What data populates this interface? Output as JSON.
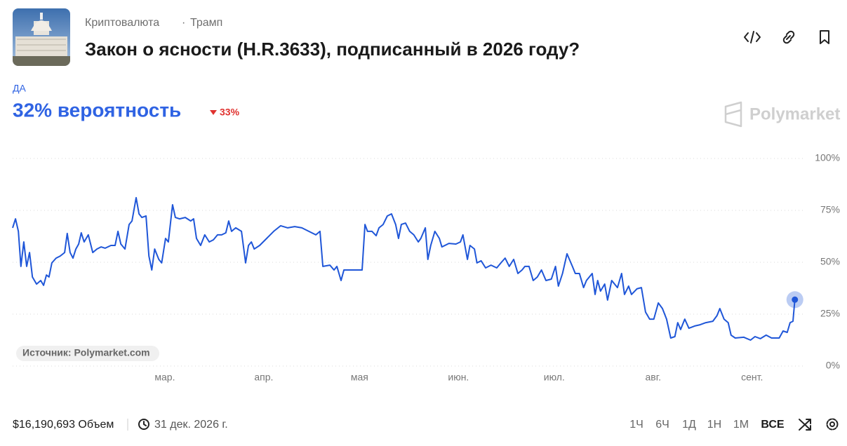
{
  "header": {
    "breadcrumb": [
      "Криптовалюта",
      "Трамп"
    ],
    "separator": "·",
    "title": "Закон о ясности (H.R.3633), подписанный в 2026 году?"
  },
  "outcome": {
    "label": "ДА",
    "probability": "32% вероятность",
    "change": "33%"
  },
  "brand": "Polymarket",
  "source": "Источник: Polymarket.com",
  "footer": {
    "volume": "$16,190,693 Объем",
    "end_date": "31 дек. 2026 г.",
    "ranges": [
      "1Ч",
      "6Ч",
      "1Д",
      "1Н",
      "1М",
      "ВСЕ"
    ]
  },
  "chart_data": {
    "type": "line",
    "x": [
      12.3,
      13.2,
      14.1,
      14.9,
      15.8,
      16.7,
      17.6,
      18.5,
      19.8,
      21.1,
      22.0,
      22.9,
      23.7,
      24.6,
      25.9,
      27.2,
      28.6,
      29.4,
      30.3,
      31.2,
      32.1,
      33.0,
      33.8,
      34.7,
      36.0,
      37.4,
      38.7,
      40.0,
      41.3,
      43.1,
      44.4,
      45.3,
      46.2,
      47.5,
      48.8,
      49.7,
      51.0,
      51.9,
      52.8,
      54.1,
      55.0,
      55.9,
      56.8,
      58.1,
      59.0,
      60.2,
      61.1,
      62.4,
      63.3,
      64.6,
      66.4,
      68.1,
      69.0,
      69.9,
      71.2,
      72.5,
      73.9,
      75.2,
      76.5,
      77.8,
      79.1,
      80.0,
      80.9,
      82.2,
      84.0,
      85.3,
      86.2,
      87.1,
      88.0,
      89.7,
      91.9,
      94.1,
      96.3,
      98.5,
      100.7,
      102.9,
      105.1,
      107.3,
      108.6,
      109.5,
      111.7,
      113.0,
      113.9,
      115.2,
      116.1,
      118.3,
      121.8,
      122.7,
      123.5,
      124.9,
      126.2,
      127.1,
      128.4,
      129.7,
      131.0,
      132.3,
      133.2,
      134.1,
      135.4,
      136.7,
      138.0,
      139.4,
      140.2,
      141.6,
      142.4,
      143.3,
      144.6,
      146.0,
      146.8,
      149.0,
      151.2,
      152.6,
      153.4,
      154.8,
      155.6,
      157.0,
      157.8,
      159.1,
      160.5,
      162.2,
      164.0,
      165.3,
      166.6,
      167.9,
      169.3,
      170.6,
      171.9,
      172.8,
      174.1,
      175.4,
      176.7,
      178.0,
      179.4,
      181.1,
      182.4,
      183.3,
      184.6,
      186.0,
      187.7,
      188.6,
      189.9,
      191.2,
      192.1,
      193.9,
      194.8,
      195.6,
      196.5,
      197.8,
      198.7,
      200.0,
      201.8,
      203.1,
      204.0,
      205.3,
      206.2,
      207.9,
      209.3,
      210.6,
      211.9,
      213.2,
      214.6,
      215.9,
      217.2,
      218.5,
      219.8,
      220.7,
      221.6,
      222.9,
      224.2,
      226.0,
      227.7,
      229.5,
      231.7,
      233.0,
      233.9,
      235.2,
      236.5,
      237.4,
      238.7,
      241.4,
      243.5,
      244.9,
      246.6,
      248.4,
      250.1,
      252.5,
      253.7,
      255.0,
      255.9,
      256.8,
      257.4
    ],
    "series": [
      {
        "color": "#1f56d8",
        "values": [
          66.6,
          70.9,
          64.9,
          48.0,
          59.8,
          48.0,
          54.7,
          42.9,
          39.5,
          41.2,
          38.9,
          43.9,
          42.9,
          49.7,
          52.0,
          53.0,
          54.7,
          63.9,
          54.7,
          52.0,
          56.4,
          58.8,
          64.2,
          59.8,
          63.2,
          54.7,
          56.4,
          57.4,
          56.8,
          58.1,
          58.1,
          64.9,
          58.8,
          56.4,
          68.2,
          69.9,
          81.1,
          73.3,
          71.6,
          72.3,
          53.0,
          46.3,
          56.4,
          51.4,
          49.7,
          61.5,
          59.8,
          77.7,
          71.6,
          70.9,
          71.6,
          69.9,
          70.9,
          61.5,
          58.1,
          63.2,
          59.8,
          60.8,
          63.2,
          63.2,
          64.2,
          69.9,
          64.9,
          66.6,
          64.9,
          49.7,
          58.1,
          59.8,
          56.4,
          58.1,
          61.5,
          64.9,
          67.6,
          66.6,
          67.2,
          66.6,
          64.9,
          63.2,
          64.9,
          48.0,
          48.6,
          46.3,
          48.0,
          41.2,
          46.3,
          46.3,
          46.3,
          68.2,
          64.9,
          64.9,
          62.8,
          66.6,
          68.2,
          72.3,
          73.3,
          68.2,
          61.5,
          68.2,
          68.9,
          64.9,
          63.2,
          59.8,
          61.5,
          66.6,
          51.4,
          58.1,
          64.9,
          61.5,
          57.4,
          59.1,
          58.8,
          59.8,
          63.2,
          51.4,
          58.1,
          56.4,
          49.7,
          50.7,
          47.3,
          48.6,
          47.3,
          49.7,
          52.0,
          48.0,
          51.4,
          44.6,
          46.3,
          48.0,
          48.0,
          41.2,
          42.9,
          46.3,
          41.2,
          41.9,
          48.0,
          38.5,
          44.6,
          54.1,
          48.0,
          44.6,
          44.6,
          37.8,
          41.2,
          44.6,
          34.5,
          41.2,
          36.1,
          39.5,
          31.8,
          41.2,
          37.8,
          44.6,
          34.5,
          38.5,
          34.5,
          37.2,
          37.8,
          26.0,
          22.6,
          22.6,
          30.4,
          27.7,
          22.6,
          13.5,
          14.2,
          20.9,
          17.6,
          22.6,
          18.2,
          19.3,
          19.9,
          20.9,
          21.6,
          24.3,
          27.7,
          22.6,
          20.9,
          14.9,
          13.5,
          13.9,
          12.5,
          14.2,
          13.2,
          14.9,
          13.5,
          13.5,
          16.9,
          16.2,
          20.9,
          21.6,
          32
        ]
      }
    ],
    "xlim": [
      12.3,
      260.1
    ],
    "xticks": [
      {
        "value": 60,
        "label": "мар."
      },
      {
        "value": 91,
        "label": "апр."
      },
      {
        "value": 121,
        "label": "мая"
      },
      {
        "value": 152,
        "label": "июн."
      },
      {
        "value": 182,
        "label": "июл."
      },
      {
        "value": 213,
        "label": "авг."
      },
      {
        "value": 244,
        "label": "сент."
      }
    ],
    "ylim": [
      0,
      100
    ],
    "yticks": [
      {
        "value": 0,
        "label": "0%"
      },
      {
        "value": 25,
        "label": "25%"
      },
      {
        "value": 50,
        "label": "50%"
      },
      {
        "value": 75,
        "label": "75%"
      },
      {
        "value": 100,
        "label": "100%"
      }
    ],
    "grid": true
  }
}
